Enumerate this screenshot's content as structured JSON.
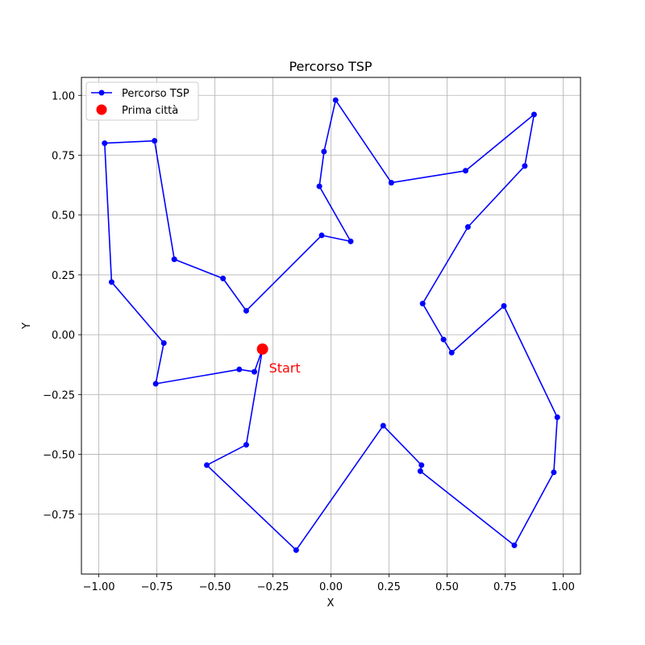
{
  "chart_data": {
    "type": "line",
    "title": "Percorso TSP",
    "xlabel": "X",
    "ylabel": "Y",
    "xlim": [
      -1.075,
      1.075
    ],
    "ylim": [
      -1.0,
      1.075
    ],
    "xticks": [
      -1.0,
      -0.75,
      -0.5,
      -0.25,
      0.0,
      0.25,
      0.5,
      0.75,
      1.0
    ],
    "xtick_labels": [
      "−1.00",
      "−0.75",
      "−0.50",
      "−0.25",
      "0.00",
      "0.25",
      "0.50",
      "0.75",
      "1.00"
    ],
    "yticks": [
      -0.75,
      -0.5,
      -0.25,
      0.0,
      0.25,
      0.5,
      0.75,
      1.0
    ],
    "ytick_labels": [
      "−0.75",
      "−0.50",
      "−0.25",
      "0.00",
      "0.25",
      "0.50",
      "0.75",
      "1.00"
    ],
    "grid": true,
    "legend_position": "upper-left",
    "series": [
      {
        "name": "Percorso TSP",
        "color": "#0000ff",
        "marker": "circle",
        "points": [
          [
            -0.295,
            -0.06
          ],
          [
            -0.33,
            -0.155
          ],
          [
            -0.395,
            -0.145
          ],
          [
            -0.755,
            -0.205
          ],
          [
            -0.72,
            -0.035
          ],
          [
            -0.945,
            0.22
          ],
          [
            -0.975,
            0.8
          ],
          [
            -0.76,
            0.81
          ],
          [
            -0.675,
            0.315
          ],
          [
            -0.465,
            0.235
          ],
          [
            -0.365,
            0.1
          ],
          [
            -0.04,
            0.415
          ],
          [
            0.085,
            0.39
          ],
          [
            -0.05,
            0.62
          ],
          [
            -0.03,
            0.765
          ],
          [
            0.02,
            0.98
          ],
          [
            0.26,
            0.635
          ],
          [
            0.58,
            0.685
          ],
          [
            0.875,
            0.92
          ],
          [
            0.835,
            0.705
          ],
          [
            0.59,
            0.45
          ],
          [
            0.395,
            0.13
          ],
          [
            0.485,
            -0.02
          ],
          [
            0.52,
            -0.075
          ],
          [
            0.745,
            0.12
          ],
          [
            0.975,
            -0.345
          ],
          [
            0.96,
            -0.575
          ],
          [
            0.79,
            -0.88
          ],
          [
            0.385,
            -0.57
          ],
          [
            0.39,
            -0.545
          ],
          [
            0.225,
            -0.38
          ],
          [
            -0.15,
            -0.9
          ],
          [
            -0.535,
            -0.545
          ],
          [
            -0.365,
            -0.46
          ],
          [
            -0.295,
            -0.06
          ]
        ]
      },
      {
        "name": "Prima città",
        "color": "#ff0000",
        "marker": "large-circle",
        "points": [
          [
            -0.295,
            -0.06
          ]
        ]
      }
    ],
    "annotations": [
      {
        "text": "Start",
        "x": -0.295,
        "y": -0.06,
        "color": "#ff0000"
      }
    ]
  }
}
